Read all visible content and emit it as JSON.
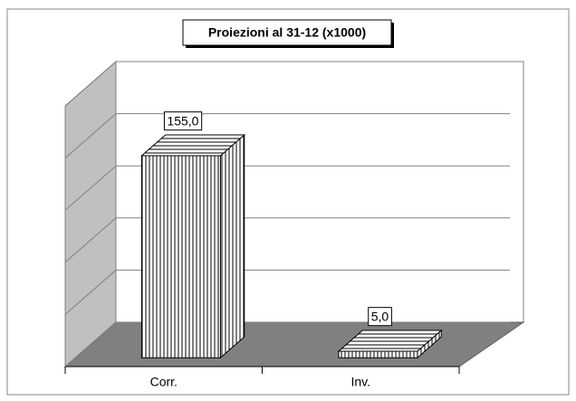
{
  "chart_data": {
    "type": "bar3d",
    "title": "Proiezioni al 31-12 (x1000)",
    "categories": [
      "Corr.",
      "Inv."
    ],
    "values": [
      155,
      5
    ],
    "value_labels": [
      "155,0",
      "5,0"
    ],
    "ylim": [
      0,
      200
    ],
    "yticks": [
      0,
      40,
      80,
      120,
      160,
      200
    ],
    "grid": true
  }
}
